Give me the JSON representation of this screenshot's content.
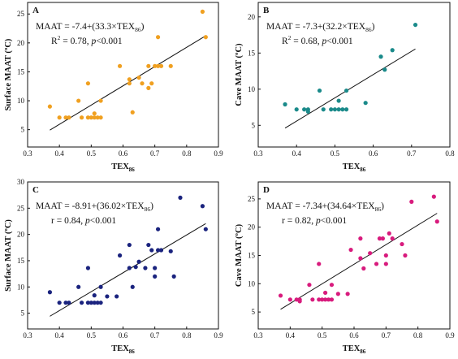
{
  "chart_data": [
    {
      "type": "scatter",
      "panel": "A",
      "xlabel_main": "TEX",
      "xlabel_sub": "86",
      "ylabel": "Surface MAAT (ºC)",
      "xlim": [
        0.3,
        0.9
      ],
      "ylim": [
        2,
        27
      ],
      "xticks": [
        "0.3",
        "0.4",
        "0.5",
        "0.6",
        "0.7",
        "0.8",
        "0.9"
      ],
      "yticks": [
        "5",
        "10",
        "15",
        "20",
        "25"
      ],
      "ytick_values": [
        5,
        10,
        15,
        20,
        25
      ],
      "marker_color": "#f0a020",
      "line_color": "#111111",
      "equation": {
        "prefix": "MAAT = -7.4+(33.3×TEX",
        "sub": "86",
        "suffix": ")"
      },
      "stat": {
        "lead": "R",
        "sup": "2",
        "text": " = 0.78, ",
        "p": "p",
        "ptext": "<0.001"
      },
      "fit": {
        "intercept": -7.4,
        "slope": 33.3,
        "x_start": 0.37,
        "x_end": 0.86
      },
      "points": [
        [
          0.37,
          9.0
        ],
        [
          0.4,
          7.1
        ],
        [
          0.42,
          7.1
        ],
        [
          0.43,
          7.1
        ],
        [
          0.46,
          10.0
        ],
        [
          0.47,
          7.1
        ],
        [
          0.49,
          13.0
        ],
        [
          0.49,
          7.1
        ],
        [
          0.5,
          7.1
        ],
        [
          0.51,
          7.8
        ],
        [
          0.51,
          7.1
        ],
        [
          0.52,
          7.1
        ],
        [
          0.53,
          10.0
        ],
        [
          0.53,
          7.1
        ],
        [
          0.59,
          16.0
        ],
        [
          0.62,
          13.0
        ],
        [
          0.62,
          13.7
        ],
        [
          0.63,
          8.0
        ],
        [
          0.65,
          14.0
        ],
        [
          0.66,
          13.0
        ],
        [
          0.68,
          12.2
        ],
        [
          0.68,
          16.0
        ],
        [
          0.69,
          13.0
        ],
        [
          0.7,
          16.0
        ],
        [
          0.71,
          16.0
        ],
        [
          0.71,
          21.0
        ],
        [
          0.72,
          16.0
        ],
        [
          0.75,
          16.0
        ],
        [
          0.85,
          25.4
        ],
        [
          0.86,
          21.0
        ]
      ]
    },
    {
      "type": "scatter",
      "panel": "B",
      "xlabel_main": "TEX",
      "xlabel_sub": "86",
      "ylabel": "Cave MAAT (ºC)",
      "xlim": [
        0.3,
        0.8
      ],
      "ylim": [
        2,
        22
      ],
      "xticks": [
        "0.3",
        "0.4",
        "0.5",
        "0.6",
        "0.7",
        "0.8"
      ],
      "yticks": [
        "5",
        "10",
        "15",
        "20"
      ],
      "ytick_values": [
        5,
        10,
        15,
        20
      ],
      "marker_color": "#1a8a8a",
      "line_color": "#111111",
      "equation": {
        "prefix": "MAAT = -7.3+(32.2×TEX",
        "sub": "86",
        "suffix": ")"
      },
      "stat": {
        "lead": "R",
        "sup": "2",
        "text": " = 0.68, ",
        "p": "p",
        "ptext": "<0.001"
      },
      "fit": {
        "intercept": -7.3,
        "slope": 32.2,
        "x_start": 0.37,
        "x_end": 0.71
      },
      "points": [
        [
          0.37,
          7.9
        ],
        [
          0.4,
          7.2
        ],
        [
          0.42,
          7.2
        ],
        [
          0.43,
          7.2
        ],
        [
          0.43,
          6.9
        ],
        [
          0.46,
          9.8
        ],
        [
          0.47,
          7.2
        ],
        [
          0.49,
          7.2
        ],
        [
          0.5,
          7.2
        ],
        [
          0.51,
          8.4
        ],
        [
          0.51,
          7.2
        ],
        [
          0.52,
          7.2
        ],
        [
          0.53,
          9.8
        ],
        [
          0.53,
          7.2
        ],
        [
          0.58,
          8.1
        ],
        [
          0.62,
          14.5
        ],
        [
          0.63,
          12.7
        ],
        [
          0.65,
          15.4
        ],
        [
          0.71,
          18.9
        ]
      ]
    },
    {
      "type": "scatter",
      "panel": "C",
      "xlabel_main": "TEX",
      "xlabel_sub": "86",
      "ylabel": "Surface MAAT (ºC)",
      "xlim": [
        0.3,
        0.9
      ],
      "ylim": [
        2,
        30
      ],
      "xticks": [
        "0.3",
        "0.4",
        "0.5",
        "0.6",
        "0.7",
        "0.8",
        "0.9"
      ],
      "yticks": [
        "5",
        "10",
        "15",
        "20",
        "25",
        "30"
      ],
      "ytick_values": [
        5,
        10,
        15,
        20,
        25,
        30
      ],
      "marker_color": "#1a237e",
      "line_color": "#111111",
      "equation": {
        "prefix": "MAAT = -8.91+(36.02×TEX",
        "sub": "86",
        "suffix": ")"
      },
      "stat": {
        "lead": "r",
        "sup": "",
        "text": " = 0.84, ",
        "p": "p",
        "ptext": "<0.001"
      },
      "fit": {
        "intercept": -8.91,
        "slope": 36.02,
        "x_start": 0.37,
        "x_end": 0.86
      },
      "points": [
        [
          0.37,
          9.0
        ],
        [
          0.4,
          7.0
        ],
        [
          0.42,
          7.0
        ],
        [
          0.43,
          7.0
        ],
        [
          0.46,
          10.0
        ],
        [
          0.47,
          7.0
        ],
        [
          0.49,
          13.6
        ],
        [
          0.49,
          7.0
        ],
        [
          0.5,
          7.0
        ],
        [
          0.51,
          8.4
        ],
        [
          0.51,
          7.0
        ],
        [
          0.52,
          7.0
        ],
        [
          0.53,
          10.0
        ],
        [
          0.53,
          7.0
        ],
        [
          0.55,
          8.2
        ],
        [
          0.58,
          8.2
        ],
        [
          0.59,
          16.0
        ],
        [
          0.62,
          13.6
        ],
        [
          0.62,
          18.0
        ],
        [
          0.63,
          10.0
        ],
        [
          0.64,
          13.8
        ],
        [
          0.65,
          14.8
        ],
        [
          0.67,
          13.6
        ],
        [
          0.68,
          18.0
        ],
        [
          0.69,
          17.0
        ],
        [
          0.7,
          12.0
        ],
        [
          0.7,
          13.6
        ],
        [
          0.71,
          17.0
        ],
        [
          0.71,
          21.0
        ],
        [
          0.72,
          17.0
        ],
        [
          0.75,
          16.8
        ],
        [
          0.76,
          12.0
        ],
        [
          0.78,
          27.0
        ],
        [
          0.85,
          25.4
        ],
        [
          0.86,
          21.0
        ]
      ]
    },
    {
      "type": "scatter",
      "panel": "D",
      "xlabel_main": "TEX",
      "xlabel_sub": "86",
      "ylabel": "Cave MAAT (ºC)",
      "xlim": [
        0.3,
        0.9
      ],
      "ylim": [
        2,
        28
      ],
      "xticks": [
        "0.3",
        "0.4",
        "0.5",
        "0.6",
        "0.7",
        "0.8",
        "0.9"
      ],
      "yticks": [
        "5",
        "10",
        "15",
        "20",
        "25"
      ],
      "ytick_values": [
        5,
        10,
        15,
        20,
        25
      ],
      "marker_color": "#d81b7d",
      "line_color": "#111111",
      "equation": {
        "prefix": "MAAT = -7.34+(34.64×TEX",
        "sub": "86",
        "suffix": ")"
      },
      "stat": {
        "lead": "r",
        "sup": "",
        "text": " = 0.82, ",
        "p": "p",
        "ptext": "<0.001"
      },
      "fit": {
        "intercept": -7.34,
        "slope": 34.64,
        "x_start": 0.37,
        "x_end": 0.86
      },
      "points": [
        [
          0.37,
          7.9
        ],
        [
          0.4,
          7.2
        ],
        [
          0.42,
          7.2
        ],
        [
          0.43,
          7.2
        ],
        [
          0.43,
          6.9
        ],
        [
          0.46,
          9.8
        ],
        [
          0.47,
          7.2
        ],
        [
          0.49,
          7.2
        ],
        [
          0.49,
          13.5
        ],
        [
          0.5,
          7.2
        ],
        [
          0.51,
          8.4
        ],
        [
          0.51,
          7.2
        ],
        [
          0.52,
          7.2
        ],
        [
          0.53,
          9.8
        ],
        [
          0.53,
          7.2
        ],
        [
          0.55,
          8.2
        ],
        [
          0.58,
          8.2
        ],
        [
          0.59,
          16.0
        ],
        [
          0.62,
          14.5
        ],
        [
          0.62,
          18.0
        ],
        [
          0.63,
          12.7
        ],
        [
          0.65,
          15.4
        ],
        [
          0.67,
          13.5
        ],
        [
          0.68,
          18.0
        ],
        [
          0.69,
          18.0
        ],
        [
          0.7,
          13.5
        ],
        [
          0.7,
          15.0
        ],
        [
          0.71,
          18.9
        ],
        [
          0.72,
          18.0
        ],
        [
          0.75,
          17.0
        ],
        [
          0.76,
          15.0
        ],
        [
          0.78,
          24.5
        ],
        [
          0.85,
          25.4
        ],
        [
          0.86,
          21.0
        ]
      ]
    }
  ]
}
